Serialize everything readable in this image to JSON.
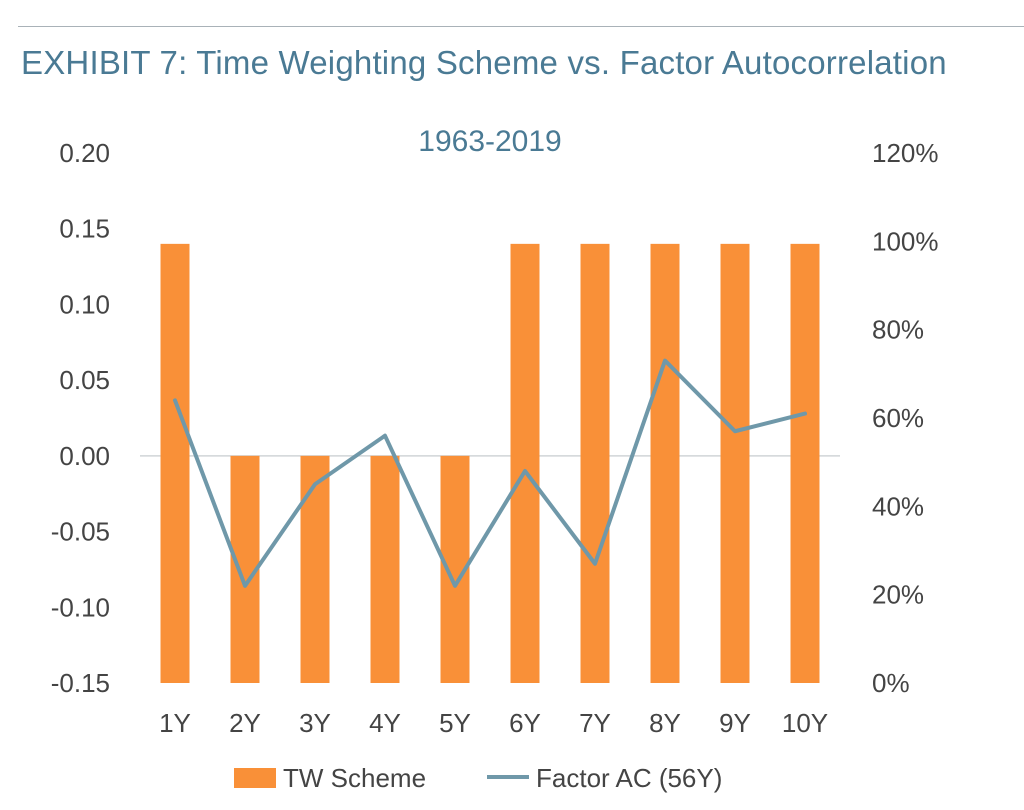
{
  "exhibit_title": "EXHIBIT 7: Time Weighting Scheme vs. Factor Autocorrelation",
  "chart_data": {
    "type": "bar",
    "title": "1963-2019",
    "categories": [
      "1Y",
      "2Y",
      "3Y",
      "4Y",
      "5Y",
      "6Y",
      "7Y",
      "8Y",
      "9Y",
      "10Y"
    ],
    "series": [
      {
        "name": "TW Scheme",
        "type": "bar",
        "axis": "left",
        "values": [
          0.14,
          -0.003,
          -0.003,
          -0.003,
          -0.003,
          0.14,
          0.14,
          0.14,
          0.14,
          0.14
        ]
      },
      {
        "name": "Factor AC (56Y)",
        "type": "line",
        "axis": "right",
        "values": [
          0.64,
          0.22,
          0.45,
          0.56,
          0.22,
          0.48,
          0.27,
          0.73,
          0.57,
          0.61
        ]
      }
    ],
    "y_left": {
      "ylim": [
        -0.15,
        0.2
      ],
      "ticks": [
        "0.20",
        "0.15",
        "0.10",
        "0.05",
        "0.00",
        "-0.05",
        "-0.10",
        "-0.15"
      ],
      "tick_values": [
        0.2,
        0.15,
        0.1,
        0.05,
        0.0,
        -0.05,
        -0.1,
        -0.15
      ]
    },
    "y_right": {
      "ylim": [
        0,
        1.2
      ],
      "ticks": [
        "120%",
        "100%",
        "80%",
        "60%",
        "40%",
        "20%",
        "0%"
      ],
      "tick_values": [
        1.2,
        1.0,
        0.8,
        0.6,
        0.4,
        0.2,
        0.0
      ]
    },
    "xlabel": "",
    "ylabel": "",
    "grid": false,
    "legend": "bottom",
    "colors": {
      "bars": "#f99038",
      "line": "#6f98a9",
      "zero_line": "#d0d4d7",
      "title": "#4a7a94",
      "axis_text": "#444444"
    }
  }
}
